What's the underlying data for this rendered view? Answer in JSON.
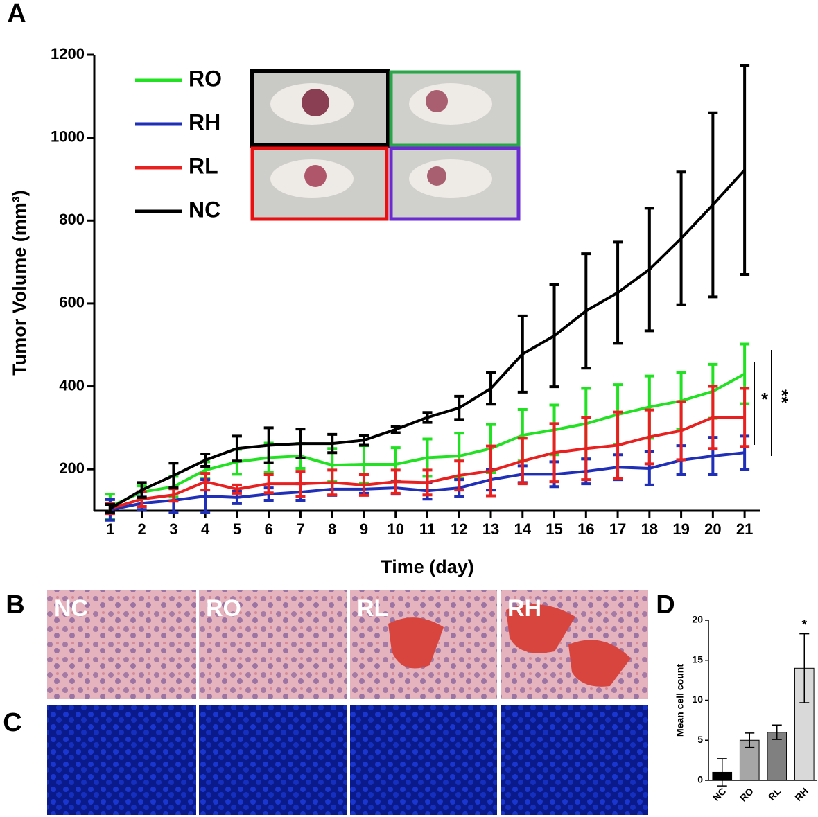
{
  "chart_data": [
    {
      "type": "line",
      "y_label": "Tumor Volume (mm³)",
      "x_label": "Time (day)",
      "x": [
        1,
        2,
        3,
        4,
        5,
        6,
        7,
        8,
        9,
        10,
        11,
        12,
        13,
        14,
        15,
        16,
        17,
        18,
        19,
        20,
        21
      ],
      "xlim": [
        0.5,
        21.5
      ],
      "xticks": [
        1,
        2,
        3,
        4,
        5,
        6,
        7,
        8,
        9,
        10,
        11,
        12,
        13,
        14,
        15,
        16,
        17,
        18,
        19,
        20,
        21
      ],
      "ylim": [
        100,
        1200
      ],
      "yticks": [
        200,
        400,
        600,
        800,
        1000,
        1200
      ],
      "series": [
        {
          "name": "RO",
          "color": "#22e022",
          "values": [
            110,
            145,
            158,
            198,
            218,
            228,
            232,
            210,
            212,
            212,
            228,
            232,
            250,
            282,
            295,
            310,
            332,
            350,
            365,
            388,
            430
          ],
          "errors": [
            30,
            15,
            25,
            20,
            30,
            35,
            30,
            40,
            45,
            40,
            45,
            55,
            58,
            62,
            60,
            85,
            72,
            75,
            68,
            65,
            72
          ]
        },
        {
          "name": "RH",
          "color": "#1f2fb8",
          "values": [
            102,
            118,
            125,
            135,
            132,
            140,
            145,
            152,
            152,
            155,
            148,
            155,
            175,
            188,
            188,
            195,
            205,
            202,
            222,
            232,
            240
          ],
          "errors": [
            25,
            15,
            30,
            40,
            15,
            15,
            20,
            15,
            10,
            15,
            20,
            20,
            25,
            20,
            30,
            30,
            30,
            40,
            35,
            45,
            40
          ]
        },
        {
          "name": "RL",
          "color": "#e82020",
          "values": [
            105,
            128,
            138,
            170,
            152,
            165,
            165,
            168,
            162,
            170,
            168,
            185,
            196,
            220,
            240,
            250,
            258,
            278,
            293,
            325,
            325
          ],
          "errors": [
            12,
            18,
            15,
            20,
            10,
            22,
            30,
            30,
            25,
            28,
            30,
            35,
            60,
            55,
            70,
            75,
            80,
            65,
            70,
            75,
            70
          ]
        },
        {
          "name": "NC",
          "color": "#000000",
          "values": [
            105,
            150,
            185,
            222,
            250,
            258,
            262,
            262,
            270,
            296,
            325,
            348,
            395,
            478,
            522,
            582,
            626,
            682,
            757,
            838,
            922
          ],
          "errors": [
            10,
            18,
            30,
            15,
            30,
            42,
            35,
            22,
            12,
            8,
            12,
            28,
            38,
            92,
            123,
            138,
            122,
            148,
            160,
            222,
            252
          ]
        }
      ],
      "annotations": [
        "*",
        "**"
      ]
    },
    {
      "type": "bar",
      "y_label": "Mean cell count",
      "categories": [
        "NC",
        "RO",
        "RL",
        "RH"
      ],
      "values": [
        1,
        5,
        6,
        14
      ],
      "errors": [
        1.7,
        0.9,
        0.9,
        4.3
      ],
      "colors": [
        "#000000",
        "#a6a6a6",
        "#808080",
        "#d9d9d9"
      ],
      "ylim": [
        0,
        20
      ],
      "yticks": [
        0,
        5,
        10,
        15,
        20
      ],
      "annotations": [
        "*"
      ]
    }
  ],
  "figure": {
    "panel_labels": [
      "A",
      "B",
      "C",
      "D"
    ],
    "image_labels": [
      "NC",
      "RO",
      "RL",
      "RH"
    ]
  }
}
